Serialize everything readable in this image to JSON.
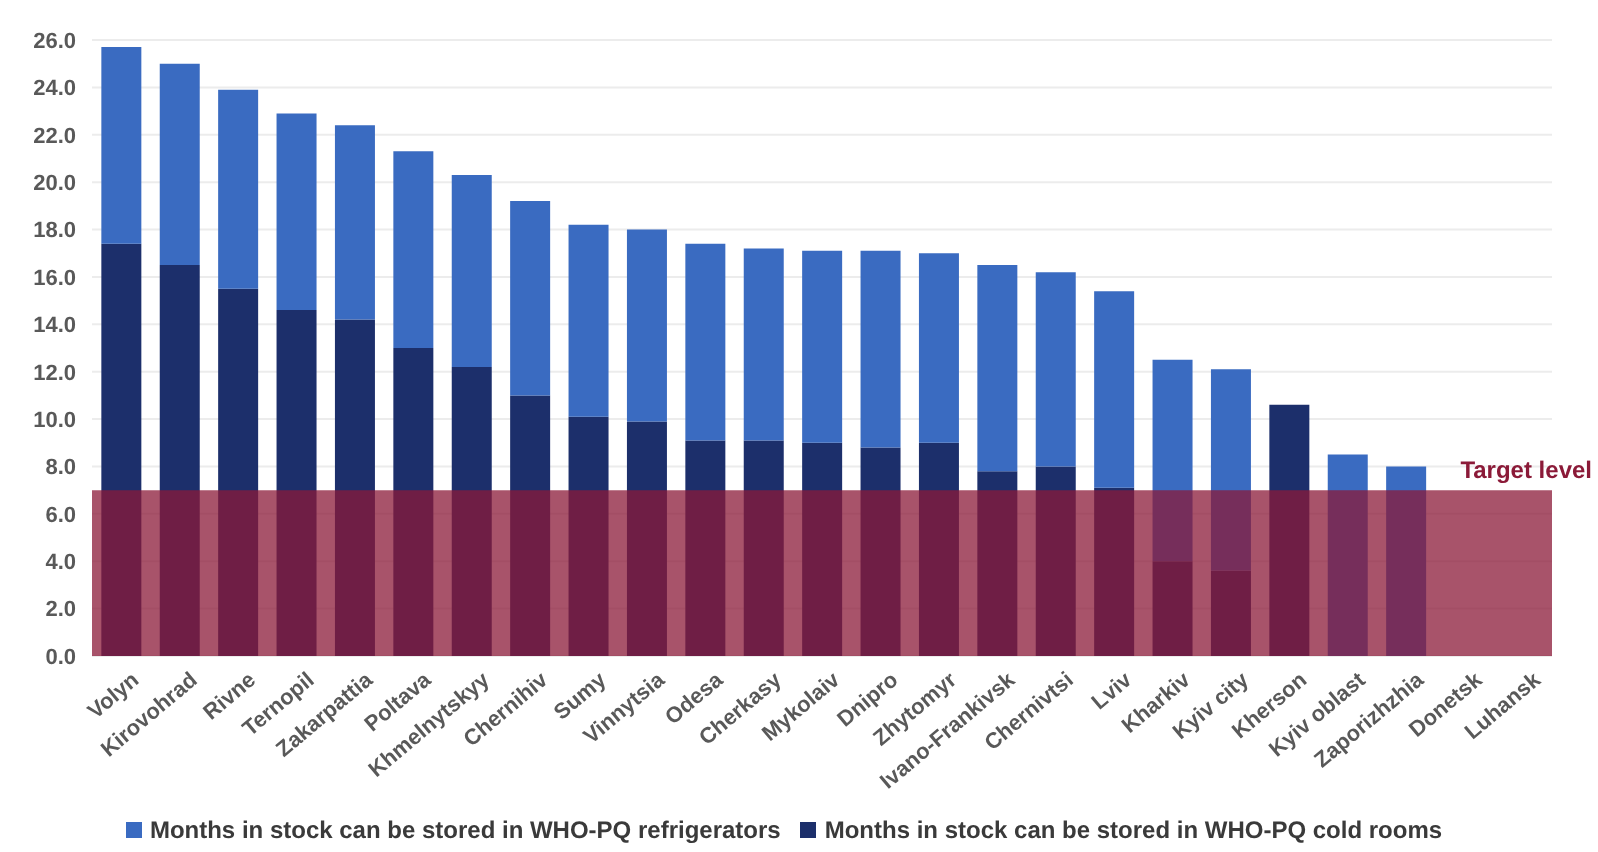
{
  "chart_data": {
    "type": "bar",
    "stacked": true,
    "categories": [
      "Volyn",
      "Kirovohrad",
      "Rivne",
      "Ternopil",
      "Zakarpattia",
      "Poltava",
      "Khmelnytskyy",
      "Chernihiv",
      "Sumy",
      "Vinnytsia",
      "Odesa",
      "Cherkasy",
      "Mykolaiv",
      "Dnipro",
      "Zhytomyr",
      "Ivano-Frankivsk",
      "Chernivtsi",
      "Lviv",
      "Kharkiv",
      "Kyiv city",
      "Kherson",
      "Kyiv oblast",
      "Zaporizhzhia",
      "Donetsk",
      "Luhansk"
    ],
    "series": [
      {
        "name": "Months in stock can be stored in WHO-PQ cold rooms",
        "color": "#1c2f6b",
        "values": [
          17.4,
          16.5,
          15.5,
          14.6,
          14.2,
          13.0,
          12.2,
          11.0,
          10.1,
          9.9,
          9.1,
          9.1,
          9.0,
          8.8,
          9.0,
          7.8,
          8.0,
          7.1,
          4.0,
          3.6,
          10.6,
          0,
          0,
          0,
          0
        ]
      },
      {
        "name": "Months in stock can be stored in WHO-PQ refrigerators",
        "color": "#3a6bc1",
        "values": [
          8.3,
          8.5,
          8.4,
          8.3,
          8.2,
          8.3,
          8.1,
          8.2,
          8.1,
          8.1,
          8.3,
          8.1,
          8.1,
          8.3,
          8.0,
          8.7,
          8.2,
          8.3,
          8.5,
          8.5,
          0,
          8.5,
          8.0,
          0,
          0
        ]
      }
    ],
    "ylim": [
      0,
      26
    ],
    "yticks": [
      {
        "value": 0,
        "label": "0.0"
      },
      {
        "value": 2,
        "label": "2.0"
      },
      {
        "value": 4,
        "label": "4.0"
      },
      {
        "value": 6,
        "label": "6.0"
      },
      {
        "value": 8,
        "label": "8.0"
      },
      {
        "value": 10,
        "label": "10.0"
      },
      {
        "value": 12,
        "label": "12.0"
      },
      {
        "value": 14,
        "label": "14.0"
      },
      {
        "value": 16,
        "label": "16.0"
      },
      {
        "value": 18,
        "label": "18.0"
      },
      {
        "value": 20,
        "label": "20.0"
      },
      {
        "value": 22,
        "label": "22.0"
      },
      {
        "value": 24,
        "label": "24.0"
      },
      {
        "value": 26,
        "label": "26.0"
      }
    ],
    "bands": [
      {
        "axis": "y",
        "from": 0,
        "to": 7,
        "label": "Target level",
        "color": "#8b1a38"
      }
    ],
    "grid": "y",
    "legend": "bottom"
  }
}
